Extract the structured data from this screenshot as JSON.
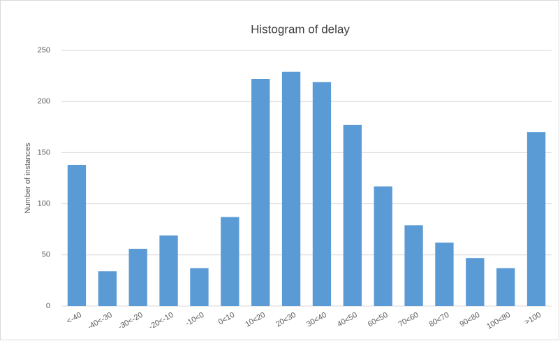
{
  "chart_data": {
    "type": "bar",
    "title": "Histogram of delay",
    "y_label": "Number of instances",
    "categories": [
      "<-40",
      "-40<-30",
      "-30<-20",
      "-20<-10",
      "-10<0",
      "0<10",
      "10<20",
      "20<30",
      "30<40",
      "40<50",
      "60<50",
      "70<60",
      "80<70",
      "90<80",
      "100<80",
      ">100"
    ],
    "values": [
      138,
      34,
      56,
      69,
      37,
      87,
      222,
      229,
      219,
      177,
      117,
      79,
      62,
      47,
      37,
      170
    ],
    "color": "#5b9bd5",
    "ylim": [
      0,
      250
    ],
    "yticks": [
      0,
      50,
      100,
      150,
      200,
      250
    ],
    "grid": true
  }
}
